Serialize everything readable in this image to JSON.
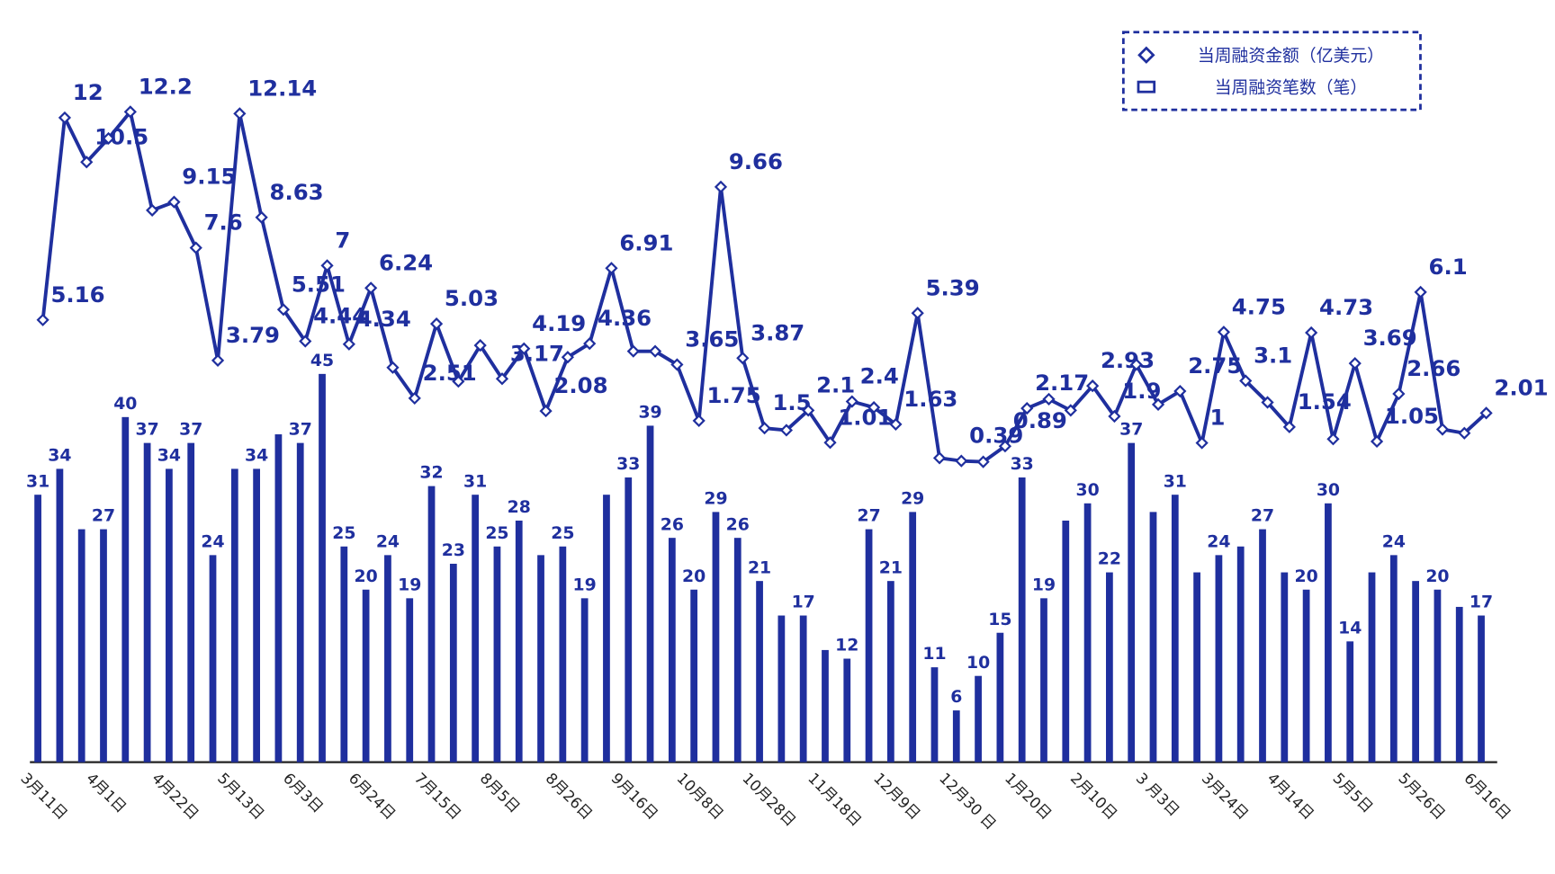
{
  "chart_data": {
    "type": "combo",
    "categories": [
      "3月11日",
      null,
      null,
      "4月1日",
      null,
      null,
      "4月22日",
      null,
      null,
      "5月13日",
      null,
      null,
      "6月3日",
      null,
      null,
      "6月24日",
      null,
      null,
      "7月15日",
      null,
      null,
      "8月5日",
      null,
      null,
      "8月26日",
      null,
      null,
      "9月16日",
      null,
      null,
      "10月8日",
      null,
      null,
      "10月28日",
      null,
      null,
      "11月18日",
      null,
      null,
      "12月9日",
      null,
      null,
      "12月30 日",
      null,
      null,
      "1月20日",
      null,
      null,
      "2月10日",
      null,
      null,
      "3 月3日",
      null,
      null,
      "3月24日",
      null,
      null,
      "4月14日",
      null,
      null,
      "5月5日",
      null,
      null,
      "5月26日",
      null,
      null,
      "6月16日"
    ],
    "ylim": [
      0,
      86
    ],
    "y2lim": [
      -9.8,
      15.3
    ],
    "legend": "top-right",
    "series": [
      {
        "name": "当周融资笔数（笔）",
        "type": "bar",
        "axis": "y",
        "color": "#1f2f9e",
        "values": [
          31,
          34,
          27,
          27,
          40,
          37,
          34,
          37,
          24,
          34,
          34,
          38,
          37,
          45,
          25,
          20,
          24,
          19,
          32,
          23,
          31,
          25,
          28,
          24,
          25,
          19,
          31,
          33,
          39,
          26,
          20,
          29,
          26,
          21,
          17,
          17,
          13,
          12,
          27,
          21,
          29,
          11,
          6,
          10,
          15,
          33,
          19,
          28,
          30,
          22,
          37,
          29,
          31,
          22,
          24,
          25,
          27,
          22,
          20,
          30,
          14,
          22,
          24,
          21,
          20,
          18,
          17
        ],
        "value_labels": [
          "31",
          "34",
          null,
          "27",
          "40",
          "37",
          "34",
          "37",
          "24",
          null,
          "34",
          null,
          "37",
          "45",
          "25",
          "20",
          "24",
          "19",
          "32",
          "23",
          "31",
          "25",
          "28",
          null,
          "25",
          "19",
          null,
          "33",
          "39",
          "26",
          "20",
          "29",
          "26",
          "21",
          null,
          "17",
          null,
          "12",
          "27",
          "21",
          "29",
          "11",
          "6",
          "10",
          "15",
          "33",
          "19",
          null,
          "30",
          "22",
          "37",
          null,
          "31",
          null,
          "24",
          null,
          "27",
          null,
          "20",
          "30",
          "14",
          null,
          "24",
          null,
          "20",
          null,
          "17"
        ]
      },
      {
        "name": "当周融资金额（亿美元）",
        "type": "line",
        "axis": "y2",
        "color": "#1f2f9e",
        "values": [
          5.16,
          12,
          10.5,
          11.3,
          12.2,
          8.87,
          9.15,
          7.6,
          3.79,
          12.14,
          8.63,
          5.51,
          4.44,
          7,
          4.34,
          6.24,
          3.55,
          2.51,
          5.03,
          3.08,
          4.3,
          3.17,
          4.19,
          2.08,
          3.9,
          4.36,
          6.91,
          4.1,
          4.1,
          3.65,
          1.75,
          9.66,
          3.87,
          1.5,
          1.43,
          2.1,
          1.01,
          2.4,
          2.2,
          1.63,
          5.39,
          0.49,
          0.39,
          0.36,
          0.89,
          2.17,
          2.48,
          2.1,
          2.93,
          1.9,
          3.65,
          2.3,
          2.75,
          1,
          4.75,
          3.1,
          2.37,
          1.54,
          4.73,
          1.13,
          3.69,
          1.05,
          2.66,
          6.1,
          1.46,
          1.33,
          2.01
        ],
        "value_labels": [
          "5.16",
          "12",
          "10.5",
          null,
          "12.2",
          null,
          "9.15",
          "7.6",
          "3.79",
          "12.14",
          "8.63",
          "5.51",
          "4.44",
          "7",
          "4.34",
          "6.24",
          null,
          "2.51",
          "5.03",
          null,
          null,
          "3.17",
          "4.19",
          "2.08",
          null,
          "4.36",
          "6.91",
          null,
          null,
          "3.65",
          "1.75",
          "9.66",
          "3.87",
          "1.5",
          null,
          "2.1",
          "1.01",
          "2.4",
          null,
          "1.63",
          "5.39",
          null,
          "0.39",
          null,
          "0.89",
          "2.17",
          null,
          null,
          "2.93",
          "1.9",
          null,
          null,
          "2.75",
          "1",
          "4.75",
          "3.1",
          null,
          "1.54",
          "4.73",
          null,
          "3.69",
          "1.05",
          "2.66",
          "6.1",
          null,
          null,
          "2.01"
        ]
      }
    ]
  }
}
